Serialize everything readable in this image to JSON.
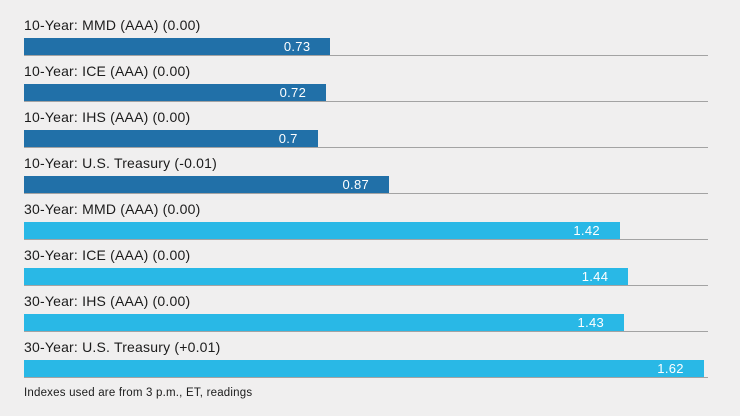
{
  "chart_data": {
    "type": "bar",
    "orientation": "horizontal",
    "title": "",
    "xlabel": "",
    "ylabel": "",
    "xlim": [
      0,
      1.63
    ],
    "grid": false,
    "legend": "none",
    "categories": [
      "10-Year: MMD (AAA) (0.00)",
      "10-Year: ICE (AAA) (0.00)",
      "10-Year: IHS (AAA) (0.00)",
      "10-Year: U.S. Treasury (-0.01)",
      "30-Year: MMD (AAA) (0.00)",
      "30-Year: ICE (AAA) (0.00)",
      "30-Year: IHS (AAA) (0.00)",
      "30-Year: U.S. Treasury (+0.01)"
    ],
    "values": [
      0.73,
      0.72,
      0.7,
      0.87,
      1.42,
      1.44,
      1.43,
      1.62
    ],
    "value_labels": [
      "0.73",
      "0.72",
      "0.7",
      "0.87",
      "1.42",
      "1.44",
      "1.43",
      "1.62"
    ],
    "groups": [
      "10-year",
      "10-year",
      "10-year",
      "10-year",
      "30-year",
      "30-year",
      "30-year",
      "30-year"
    ],
    "group_colors": {
      "10-year": "#2170a8",
      "30-year": "#29b8e6"
    },
    "value_label_color": "#ffffff",
    "baseline_color": "#a3a3a3",
    "background_color": "#f0efef",
    "footnote": "Indexes used are from 3 p.m., ET, readings"
  }
}
